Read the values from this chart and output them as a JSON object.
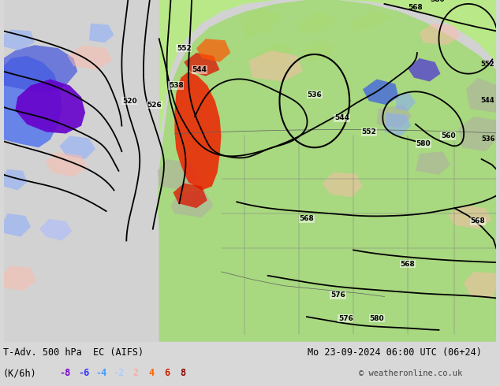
{
  "title_left": "T-Adv. 500 hPa  EC (AIFS)",
  "title_right": "Mo 23-09-2024 06:00 UTC (06+24)",
  "units_label": "(K/6h)",
  "colorbar_values": [
    "-8",
    "-6",
    "-4",
    "-2",
    "2",
    "4",
    "6",
    "8"
  ],
  "colorbar_colors": [
    "#7700cc",
    "#3333ff",
    "#4499ff",
    "#aaccff",
    "#ffaaaa",
    "#ff6600",
    "#cc2200",
    "#880000"
  ],
  "copyright": "© weatheronline.co.uk",
  "bg_color": "#d8d8d8",
  "ocean_color": "#d0d0d0",
  "fig_width": 6.34,
  "fig_height": 4.9,
  "dpi": 100,
  "bottom_bar_color": "#c8c8c8",
  "land_green": "#a8d878",
  "land_light_green": "#c0e890",
  "gray_land": "#b8b8b8",
  "contour_lw": 1.3
}
